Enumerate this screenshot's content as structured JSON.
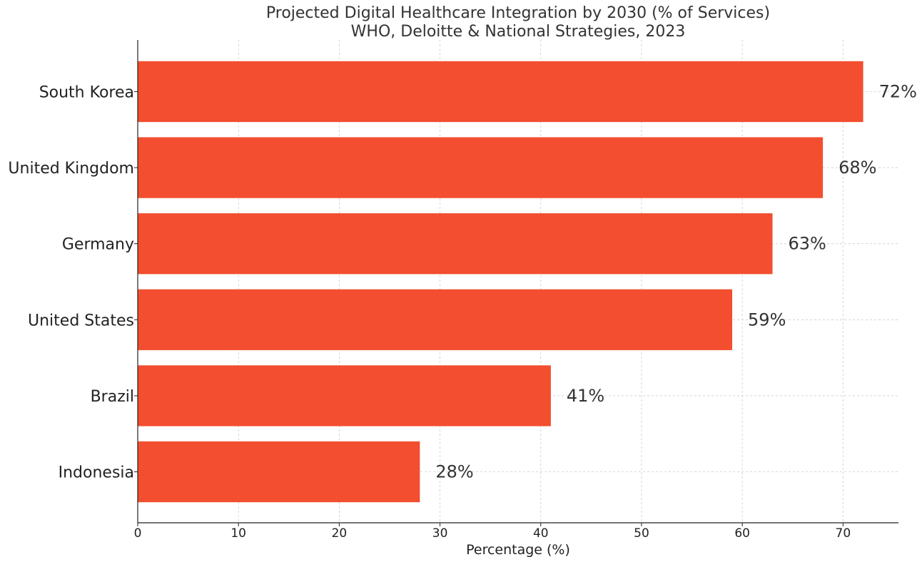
{
  "chart_data": {
    "type": "bar",
    "orientation": "horizontal",
    "title": "Projected Digital Healthcare Integration by 2030 (% of Services)",
    "subtitle": "WHO, Deloitte & National Strategies, 2023",
    "xlabel": "Percentage (%)",
    "ylabel": "",
    "categories": [
      "South Korea",
      "United Kingdom",
      "Germany",
      "United States",
      "Brazil",
      "Indonesia"
    ],
    "values": [
      72,
      68,
      63,
      59,
      41,
      28
    ],
    "value_labels": [
      "72%",
      "68%",
      "63%",
      "59%",
      "41%",
      "28%"
    ],
    "xlim": [
      0,
      75.5
    ],
    "xticks": [
      0,
      10,
      20,
      30,
      40,
      50,
      60,
      70
    ],
    "xtick_labels": [
      "0",
      "10",
      "20",
      "30",
      "40",
      "50",
      "60",
      "70"
    ],
    "grid": true,
    "bar_color": "#f24e2f"
  }
}
